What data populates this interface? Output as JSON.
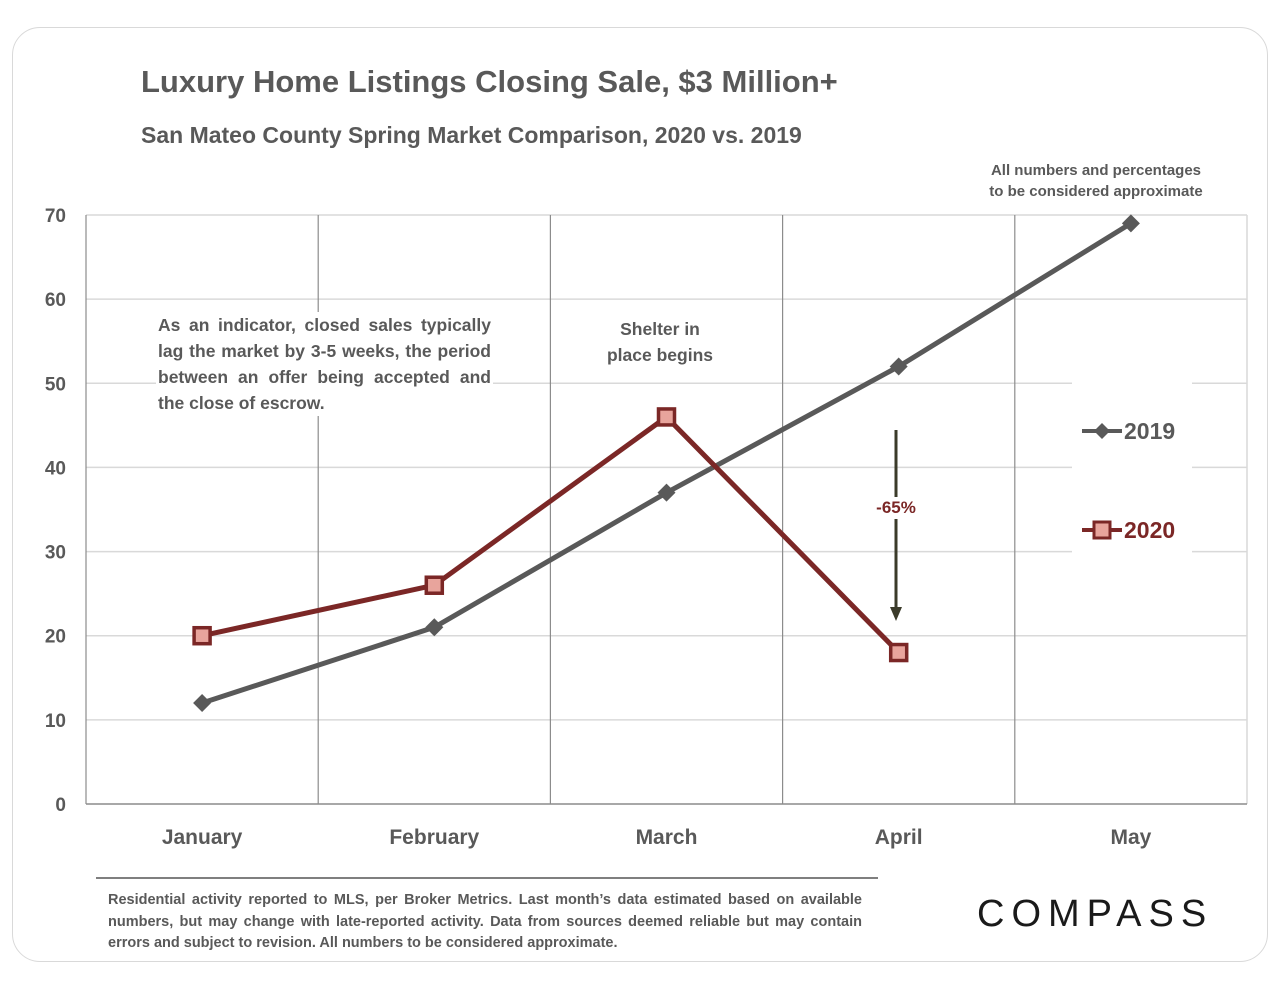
{
  "header": {
    "title": "Luxury Home Listings Closing Sale, $3 Million+",
    "subtitle": "San Mateo County Spring Market Comparison, 2020 vs. 2019",
    "note_line1": "All numbers and percentages",
    "note_line2": "to be considered approximate"
  },
  "annotations": {
    "indicator": "As an indicator, closed sales typically lag the market by 3-5 weeks, the period between an offer being accepted and the close of escrow.",
    "shelter_line1": "Shelter in",
    "shelter_line2": "place  begins",
    "decline": "-65%"
  },
  "footer": {
    "disclaimer": "Residential activity reported to MLS, per Broker Metrics. Last month’s data estimated based on available numbers, but may change with late-reported activity. Data from sources deemed reliable but may contain errors and subject to revision. All numbers to be considered approximate.",
    "logo": "COMPASS"
  },
  "colors": {
    "series_2019": "#595959",
    "series_2020": "#7b2726",
    "marker_2020_fill": "#e8a49c",
    "grid": "#d9d9d9",
    "arrow": "#3b3b2a"
  },
  "chart_data": {
    "type": "line",
    "title": "Luxury Home Listings Closing Sale, $3 Million+",
    "subtitle": "San Mateo County Spring Market Comparison, 2020 vs. 2019",
    "categories": [
      "January",
      "February",
      "March",
      "April",
      "May"
    ],
    "series": [
      {
        "name": "2019",
        "values": [
          12,
          21,
          37,
          52,
          69
        ],
        "marker": "diamond"
      },
      {
        "name": "2020",
        "values": [
          20,
          26,
          46,
          18,
          null
        ],
        "marker": "square"
      }
    ],
    "yticks": [
      "0",
      "10",
      "20",
      "30",
      "40",
      "50",
      "60",
      "70"
    ],
    "ylim": [
      0,
      70
    ],
    "xlabel": "",
    "ylabel": "",
    "grid": true,
    "legend": "right"
  }
}
